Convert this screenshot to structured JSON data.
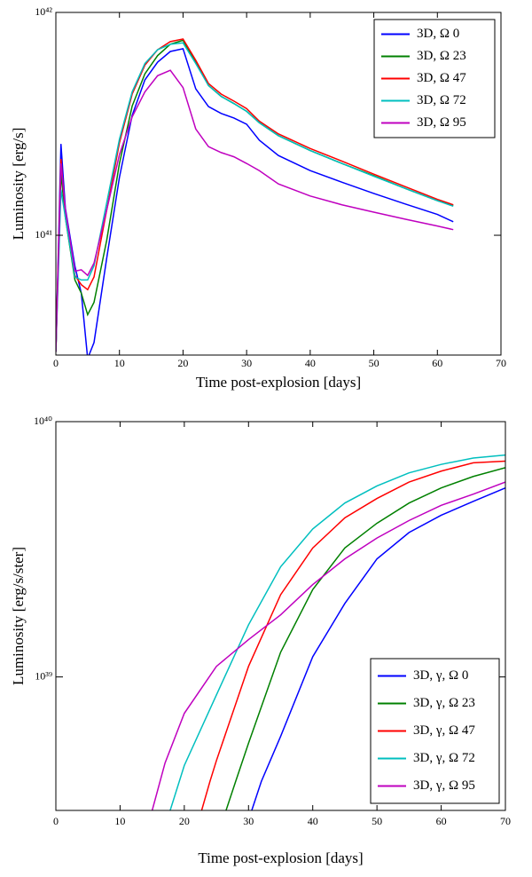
{
  "chart_data": [
    {
      "type": "line",
      "ylabel": "Luminosity [erg/s]",
      "xlabel": "Time post-explosion [days]",
      "yscale": "log",
      "legend": "upper right",
      "xlim": [
        0,
        70
      ],
      "xticks": [
        0,
        10,
        20,
        30,
        40,
        50,
        60,
        70
      ],
      "ylim": [
        2.9e+40,
        1e+42
      ],
      "yticks": [
        {
          "value": 1e+41,
          "label": "10⁴¹"
        },
        {
          "value": 1e+42,
          "label": "10⁴²"
        }
      ],
      "x": [
        0,
        0.8,
        1.5,
        3,
        4,
        5,
        6,
        8,
        10,
        12,
        14,
        16,
        18,
        20,
        22,
        24,
        26,
        28,
        30,
        32,
        35,
        40,
        45,
        50,
        55,
        60,
        62.5
      ],
      "series": [
        {
          "name": "3D, Ω 0",
          "color": "#0000ff",
          "values": [
            3e+40,
            2.57e+41,
            1.32e+41,
            7.26e+40,
            5.5e+40,
            2.8e+40,
            3.3e+40,
            7.9e+40,
            1.82e+41,
            3.45e+41,
            4.98e+41,
            5.98e+41,
            6.68e+41,
            6.87e+41,
            4.54e+41,
            3.78e+41,
            3.52e+41,
            3.36e+41,
            3.15e+41,
            2.67e+41,
            2.28e+41,
            1.95e+41,
            1.73e+41,
            1.54e+41,
            1.38e+41,
            1.24e+41,
            1.15e+41
          ]
        },
        {
          "name": "3D, Ω 23",
          "color": "#008000",
          "values": [
            3e+40,
            1.9e+41,
            1.2e+41,
            6.3e+40,
            5.5e+40,
            4.4e+40,
            5e+40,
            9.5e+40,
            2.1e+41,
            3.8e+41,
            5.3e+41,
            6.4e+41,
            7.2e+41,
            7.5e+41,
            6e+41,
            4.7e+41,
            4.2e+41,
            3.9e+41,
            3.6e+41,
            3.2e+41,
            2.8e+41,
            2.4e+41,
            2.1e+41,
            1.85e+41,
            1.62e+41,
            1.43e+41,
            1.36e+41
          ]
        },
        {
          "name": "3D, Ω 47",
          "color": "#ff0000",
          "values": [
            3e+40,
            2.2e+41,
            1.25e+41,
            6.6e+40,
            6e+40,
            5.7e+40,
            6.5e+40,
            1.3e+41,
            2.6e+41,
            4.3e+41,
            5.8e+41,
            6.8e+41,
            7.4e+41,
            7.6e+41,
            6.1e+41,
            4.8e+41,
            4.3e+41,
            4e+41,
            3.7e+41,
            3.25e+41,
            2.85e+41,
            2.45e+41,
            2.15e+41,
            1.88e+41,
            1.65e+41,
            1.45e+41,
            1.37e+41
          ]
        },
        {
          "name": "3D, Ω 72",
          "color": "#00bfbf",
          "values": [
            3e+40,
            1.6e+41,
            1.2e+41,
            6.5e+40,
            6.3e+40,
            6.3e+40,
            7.3e+40,
            1.4e+41,
            2.7e+41,
            4.4e+41,
            5.9e+41,
            6.8e+41,
            7.2e+41,
            7.3e+41,
            5.9e+41,
            4.7e+41,
            4.2e+41,
            3.9e+41,
            3.6e+41,
            3.2e+41,
            2.8e+41,
            2.4e+41,
            2.1e+41,
            1.84e+41,
            1.62e+41,
            1.43e+41,
            1.35e+41
          ]
        },
        {
          "name": "3D, Ω 95",
          "color": "#bf00bf",
          "values": [
            3e+40,
            2.1e+41,
            1.3e+41,
            6.9e+40,
            7e+40,
            6.6e+40,
            7.5e+40,
            1.3e+41,
            2.3e+41,
            3.4e+41,
            4.4e+41,
            5.2e+41,
            5.5e+41,
            4.6e+41,
            3e+41,
            2.5e+41,
            2.35e+41,
            2.25e+41,
            2.1e+41,
            1.95e+41,
            1.7e+41,
            1.5e+41,
            1.37e+41,
            1.27e+41,
            1.18e+41,
            1.1e+41,
            1.06e+41
          ]
        }
      ]
    },
    {
      "type": "line",
      "ylabel": "Luminosity [erg/s/ster]",
      "xlabel": "Time post-explosion [days]",
      "yscale": "log",
      "legend": "lower right",
      "xlim": [
        0,
        70
      ],
      "xticks": [
        0,
        10,
        20,
        30,
        40,
        50,
        60,
        70
      ],
      "ylim": [
        3e+38,
        1e+40
      ],
      "yticks": [
        {
          "value": 1e+39,
          "label": "10³⁹"
        },
        {
          "value": 1e+40,
          "label": "10⁴⁰"
        }
      ],
      "series": [
        {
          "name": "3D, γ, Ω 0",
          "color": "#0000ff",
          "x": [
            30.5,
            32,
            35,
            40,
            45,
            50,
            55,
            60,
            65,
            70
          ],
          "values": [
            3e+38,
            3.9e+38,
            5.85e+38,
            1.2e+39,
            1.94e+39,
            2.9e+39,
            3.68e+39,
            4.3e+39,
            4.87e+39,
            5.5e+39
          ]
        },
        {
          "name": "3D, γ, Ω 23",
          "color": "#008000",
          "x": [
            26.5,
            28,
            30,
            35,
            40,
            45,
            50,
            55,
            60,
            65,
            70
          ],
          "values": [
            3e+38,
            3.9e+38,
            5.5e+38,
            1.25e+39,
            2.2e+39,
            3.2e+39,
            4e+39,
            4.8e+39,
            5.5e+39,
            6.1e+39,
            6.6e+39
          ]
        },
        {
          "name": "3D, γ, Ω 47",
          "color": "#ff0000",
          "x": [
            22.7,
            24,
            25,
            30,
            35,
            40,
            45,
            50,
            55,
            60,
            65,
            70
          ],
          "values": [
            3e+38,
            3.9e+38,
            4.7e+38,
            1.1e+39,
            2.1e+39,
            3.2e+39,
            4.2e+39,
            5e+39,
            5.8e+39,
            6.4e+39,
            6.9e+39,
            7e+39
          ]
        },
        {
          "name": "3D, γ, Ω 72",
          "color": "#00bfbf",
          "x": [
            17.8,
            20,
            25,
            30,
            35,
            40,
            45,
            50,
            55,
            60,
            65,
            70
          ],
          "values": [
            3e+38,
            4.5e+38,
            8.5e+38,
            1.6e+39,
            2.7e+39,
            3.8e+39,
            4.8e+39,
            5.6e+39,
            6.3e+39,
            6.8e+39,
            7.2e+39,
            7.4e+39
          ]
        },
        {
          "name": "3D, γ, Ω 95",
          "color": "#bf00bf",
          "x": [
            15,
            17,
            20,
            25,
            30,
            35,
            40,
            45,
            50,
            55,
            60,
            65,
            70
          ],
          "values": [
            3e+38,
            4.6e+38,
            7.2e+38,
            1.1e+39,
            1.4e+39,
            1.75e+39,
            2.3e+39,
            2.9e+39,
            3.5e+39,
            4.1e+39,
            4.7e+39,
            5.2e+39,
            5.8e+39
          ]
        }
      ]
    }
  ]
}
